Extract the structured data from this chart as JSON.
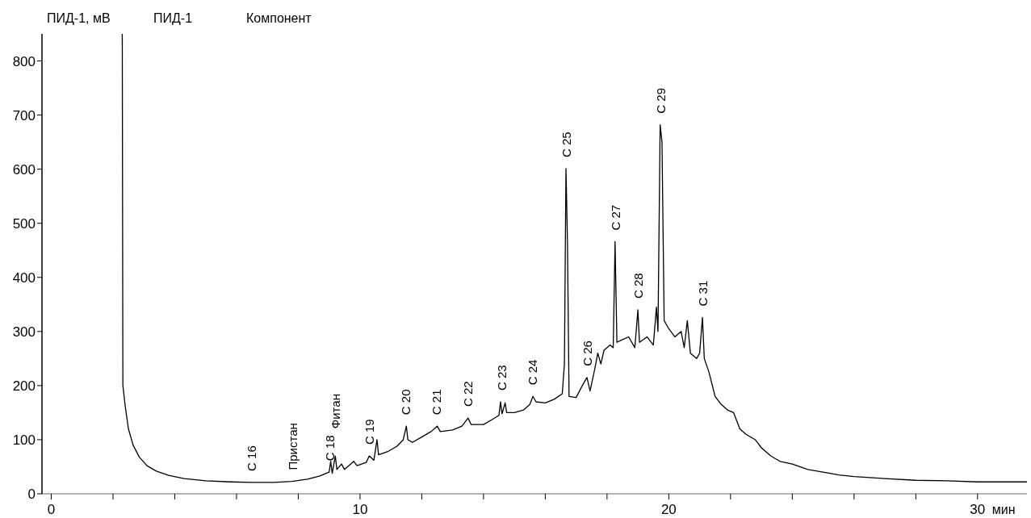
{
  "chart_data": {
    "type": "line",
    "ylabel": "ПИД-1, мВ",
    "xlabel": "мин",
    "legend": "top left",
    "grid": false,
    "marker": "none",
    "line_style": "solid",
    "xlim": [
      -0.3,
      31.6
    ],
    "xticks": [
      0,
      {
        "value": 2,
        "label": null
      },
      {
        "value": 4,
        "label": null
      },
      {
        "value": 6,
        "label": null
      },
      {
        "value": 8,
        "label": null
      },
      10,
      {
        "value": 12,
        "label": null
      },
      {
        "value": 14,
        "label": null
      },
      {
        "value": 16,
        "label": null
      },
      {
        "value": 18,
        "label": null
      },
      20,
      {
        "value": 22,
        "label": null
      },
      {
        "value": 24,
        "label": null
      },
      {
        "value": 26,
        "label": null
      },
      {
        "value": 28,
        "label": null
      },
      30
    ],
    "ylim": [
      0,
      850
    ],
    "yticks": [
      0,
      100,
      200,
      300,
      400,
      500,
      600,
      700,
      800
    ],
    "series": [
      {
        "name": "ПИД-1",
        "color": "#000000",
        "x": [
          2.3,
          2.32,
          2.4,
          2.5,
          2.65,
          2.85,
          3.1,
          3.4,
          3.8,
          4.3,
          5.0,
          5.8,
          6.5,
          7.2,
          7.8,
          8.3,
          8.7,
          9.0,
          9.05,
          9.1,
          9.2,
          9.25,
          9.4,
          9.5,
          9.8,
          9.9,
          10.2,
          10.3,
          10.45,
          10.55,
          10.6,
          10.9,
          11.2,
          11.4,
          11.5,
          11.55,
          11.7,
          12.0,
          12.3,
          12.5,
          12.6,
          13.0,
          13.3,
          13.5,
          13.6,
          14.0,
          14.3,
          14.5,
          14.55,
          14.6,
          14.7,
          14.75,
          15.0,
          15.3,
          15.5,
          15.6,
          15.7,
          16.0,
          16.3,
          16.55,
          16.62,
          16.67,
          16.72,
          16.77,
          17.0,
          17.2,
          17.35,
          17.45,
          17.6,
          17.7,
          17.8,
          17.9,
          18.1,
          18.2,
          18.26,
          18.32,
          18.5,
          18.7,
          18.9,
          19.0,
          19.05,
          19.3,
          19.5,
          19.6,
          19.65,
          19.72,
          19.78,
          19.85,
          20.0,
          20.2,
          20.4,
          20.5,
          20.6,
          20.7,
          20.9,
          21.0,
          21.09,
          21.15,
          21.3,
          21.5,
          21.7,
          21.9,
          22.1,
          22.3,
          22.5,
          22.8,
          23.0,
          23.3,
          23.6,
          24.0,
          24.5,
          25.0,
          25.5,
          26.0,
          27.0,
          28.0,
          29.0,
          30.0,
          31.6
        ],
        "values": [
          850,
          200,
          160,
          120,
          90,
          68,
          52,
          42,
          34,
          28,
          24,
          22,
          21,
          21,
          23,
          27,
          33,
          40,
          60,
          38,
          70,
          45,
          55,
          45,
          60,
          52,
          58,
          70,
          62,
          100,
          72,
          78,
          88,
          100,
          125,
          100,
          95,
          105,
          115,
          125,
          115,
          118,
          125,
          140,
          128,
          128,
          138,
          145,
          170,
          148,
          168,
          150,
          150,
          155,
          165,
          180,
          170,
          168,
          175,
          185,
          240,
          601,
          460,
          180,
          178,
          200,
          215,
          190,
          230,
          260,
          240,
          265,
          275,
          270,
          466,
          280,
          285,
          290,
          270,
          340,
          280,
          290,
          275,
          345,
          300,
          682,
          650,
          320,
          305,
          290,
          300,
          270,
          320,
          260,
          250,
          260,
          326,
          250,
          225,
          180,
          165,
          155,
          150,
          120,
          110,
          100,
          85,
          70,
          60,
          55,
          45,
          40,
          35,
          32,
          28,
          25,
          24,
          22,
          22
        ]
      }
    ],
    "annotations": [
      "Компонент",
      {
        "text": "C 16",
        "x": 6.46,
        "y": 21
      },
      {
        "text": "Пристан",
        "x": 7.8,
        "y": 23
      },
      {
        "text": "C 18",
        "x": 9.0,
        "y": 40
      },
      {
        "text": "Фитан",
        "x": 9.19,
        "y": 70
      },
      {
        "text": "C 19",
        "x": 10.3,
        "y": 70
      },
      {
        "text": "C 20",
        "x": 11.46,
        "y": 125
      },
      {
        "text": "C 21",
        "x": 12.45,
        "y": 125
      },
      {
        "text": "C 22",
        "x": 13.48,
        "y": 140
      },
      {
        "text": "C 23",
        "x": 14.57,
        "y": 170
      },
      {
        "text": "C 24",
        "x": 15.58,
        "y": 180
      },
      {
        "text": "C 25",
        "x": 16.67,
        "y": 601
      },
      {
        "text": "C 26",
        "x": 17.35,
        "y": 215
      },
      {
        "text": "C 27",
        "x": 18.26,
        "y": 466
      },
      {
        "text": "C 28",
        "x": 19.0,
        "y": 340
      },
      {
        "text": "C 29",
        "x": 19.72,
        "y": 682
      },
      {
        "text": "C 31",
        "x": 21.09,
        "y": 326
      }
    ]
  }
}
